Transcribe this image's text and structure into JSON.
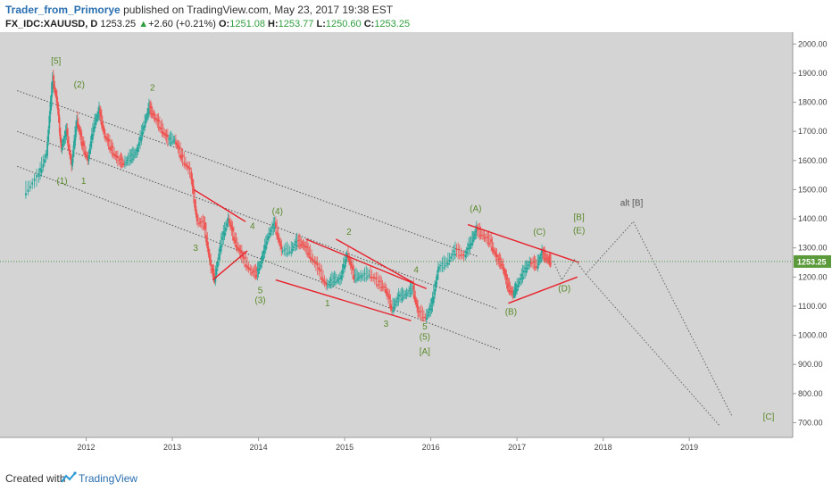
{
  "header": {
    "author": "Trader_from_Primorye",
    "published_text": "published on TradingView.com, May 23, 2017 19:38 EST",
    "symbol": "FX_IDC:XAUUSD, D",
    "last": "1253.25",
    "change": "+2.60 (+0.21%)",
    "o_label": "O:",
    "o_value": "1251.08",
    "h_label": "H:",
    "h_value": "1253.77",
    "l_label": "L:",
    "l_value": "1250.60",
    "c_label": "C:",
    "c_value": "1253.25"
  },
  "footer": {
    "created_with": "Created with",
    "brand": "TradingView"
  },
  "chart_data": {
    "type": "line",
    "title": "",
    "xlabel": "",
    "ylabel": "",
    "x_ticks": [
      "2012",
      "2013",
      "2014",
      "2015",
      "2016",
      "2017",
      "2018",
      "2019"
    ],
    "y_ticks": [
      "2000.00",
      "1900.00",
      "1800.00",
      "1700.00",
      "1600.00",
      "1500.00",
      "1400.00",
      "1300.00",
      "1200.00",
      "1100.00",
      "1000.00",
      "900.00",
      "800.00",
      "700.00"
    ],
    "ylim": [
      680,
      2010
    ],
    "last_price_label": "1253.25",
    "last_price": 1253.25,
    "colors": {
      "up": "#26a69a",
      "down": "#ef5350",
      "trend": "#e8202a",
      "wave": "#5a8a2a",
      "channel": "#555555"
    },
    "series": [
      {
        "values": [
          [
            2011.3,
            1490
          ],
          [
            2011.45,
            1540
          ],
          [
            2011.55,
            1620
          ],
          [
            2011.62,
            1880
          ],
          [
            2011.67,
            1800
          ],
          [
            2011.72,
            1640
          ],
          [
            2011.78,
            1700
          ],
          [
            2011.84,
            1580
          ],
          [
            2011.9,
            1740
          ],
          [
            2011.96,
            1660
          ],
          [
            2012.03,
            1600
          ],
          [
            2012.1,
            1720
          ],
          [
            2012.16,
            1770
          ],
          [
            2012.22,
            1690
          ],
          [
            2012.3,
            1640
          ],
          [
            2012.38,
            1600
          ],
          [
            2012.45,
            1590
          ],
          [
            2012.53,
            1610
          ],
          [
            2012.6,
            1630
          ],
          [
            2012.68,
            1720
          ],
          [
            2012.74,
            1780
          ],
          [
            2012.8,
            1750
          ],
          [
            2012.88,
            1710
          ],
          [
            2012.96,
            1670
          ],
          [
            2013.04,
            1670
          ],
          [
            2013.12,
            1610
          ],
          [
            2013.22,
            1560
          ],
          [
            2013.3,
            1390
          ],
          [
            2013.38,
            1380
          ],
          [
            2013.46,
            1230
          ],
          [
            2013.5,
            1190
          ],
          [
            2013.58,
            1320
          ],
          [
            2013.66,
            1400
          ],
          [
            2013.74,
            1320
          ],
          [
            2013.82,
            1270
          ],
          [
            2013.92,
            1220
          ],
          [
            2013.99,
            1210
          ],
          [
            2014.05,
            1260
          ],
          [
            2014.12,
            1340
          ],
          [
            2014.2,
            1380
          ],
          [
            2014.28,
            1290
          ],
          [
            2014.38,
            1290
          ],
          [
            2014.46,
            1320
          ],
          [
            2014.53,
            1310
          ],
          [
            2014.6,
            1280
          ],
          [
            2014.7,
            1230
          ],
          [
            2014.8,
            1170
          ],
          [
            2014.88,
            1190
          ],
          [
            2014.96,
            1190
          ],
          [
            2015.04,
            1280
          ],
          [
            2015.12,
            1200
          ],
          [
            2015.2,
            1200
          ],
          [
            2015.3,
            1210
          ],
          [
            2015.4,
            1180
          ],
          [
            2015.48,
            1160
          ],
          [
            2015.56,
            1090
          ],
          [
            2015.64,
            1130
          ],
          [
            2015.72,
            1140
          ],
          [
            2015.8,
            1160
          ],
          [
            2015.86,
            1080
          ],
          [
            2015.95,
            1060
          ],
          [
            2016.02,
            1100
          ],
          [
            2016.1,
            1230
          ],
          [
            2016.2,
            1250
          ],
          [
            2016.3,
            1290
          ],
          [
            2016.4,
            1270
          ],
          [
            2016.48,
            1320
          ],
          [
            2016.54,
            1360
          ],
          [
            2016.62,
            1340
          ],
          [
            2016.7,
            1320
          ],
          [
            2016.78,
            1260
          ],
          [
            2016.84,
            1240
          ],
          [
            2016.9,
            1170
          ],
          [
            2016.96,
            1140
          ],
          [
            2017.0,
            1160
          ],
          [
            2017.08,
            1210
          ],
          [
            2017.16,
            1250
          ],
          [
            2017.24,
            1240
          ],
          [
            2017.3,
            1280
          ],
          [
            2017.36,
            1260
          ],
          [
            2017.4,
            1253
          ]
        ]
      }
    ],
    "channel_lines": [
      [
        [
          2011.2,
          1840
        ],
        [
          2016.55,
          1270
        ]
      ],
      [
        [
          2011.2,
          1700
        ],
        [
          2016.78,
          1090
        ]
      ],
      [
        [
          2011.2,
          1580
        ],
        [
          2016.8,
          950
        ]
      ]
    ],
    "trend_lines": [
      [
        [
          2013.25,
          1500
        ],
        [
          2013.85,
          1390
        ]
      ],
      [
        [
          2013.47,
          1190
        ],
        [
          2013.87,
          1290
        ]
      ],
      [
        [
          2014.2,
          1190
        ],
        [
          2015.77,
          1050
        ]
      ],
      [
        [
          2014.55,
          1330
        ],
        [
          2015.95,
          1160
        ]
      ],
      [
        [
          2014.9,
          1330
        ],
        [
          2015.8,
          1180
        ]
      ],
      [
        [
          2016.43,
          1380
        ],
        [
          2017.72,
          1250
        ]
      ],
      [
        [
          2016.9,
          1110
        ],
        [
          2017.7,
          1200
        ]
      ]
    ],
    "projection_lines": [
      [
        [
          2017.42,
          1255
        ],
        [
          2017.52,
          1190
        ],
        [
          2017.67,
          1260
        ],
        [
          2017.8,
          1210
        ],
        [
          2018.35,
          1390
        ],
        [
          2019.5,
          720
        ]
      ],
      [
        [
          2017.8,
          1210
        ],
        [
          2019.35,
          690
        ]
      ]
    ],
    "annotations": [
      {
        "text": "[5]",
        "x": 2011.65,
        "y": 1932
      },
      {
        "text": "(2)",
        "x": 2011.92,
        "y": 1850
      },
      {
        "text": "2",
        "x": 2012.77,
        "y": 1840
      },
      {
        "text": "(1)",
        "x": 2011.72,
        "y": 1520
      },
      {
        "text": "1",
        "x": 2011.97,
        "y": 1520
      },
      {
        "text": "3",
        "x": 2013.27,
        "y": 1290
      },
      {
        "text": "4",
        "x": 2013.93,
        "y": 1365
      },
      {
        "text": "(4)",
        "x": 2014.22,
        "y": 1415
      },
      {
        "text": "5",
        "x": 2014.02,
        "y": 1145
      },
      {
        "text": "(3)",
        "x": 2014.02,
        "y": 1110
      },
      {
        "text": "2",
        "x": 2015.05,
        "y": 1345
      },
      {
        "text": "4",
        "x": 2015.83,
        "y": 1215
      },
      {
        "text": "1",
        "x": 2014.8,
        "y": 1100
      },
      {
        "text": "3",
        "x": 2015.48,
        "y": 1030
      },
      {
        "text": "5",
        "x": 2015.93,
        "y": 1020
      },
      {
        "text": "(5)",
        "x": 2015.93,
        "y": 985
      },
      {
        "text": "[A]",
        "x": 2015.93,
        "y": 935
      },
      {
        "text": "(A)",
        "x": 2016.52,
        "y": 1425
      },
      {
        "text": "(C)",
        "x": 2017.26,
        "y": 1345
      },
      {
        "text": "(B)",
        "x": 2016.93,
        "y": 1070
      },
      {
        "text": "(D)",
        "x": 2017.55,
        "y": 1150
      },
      {
        "text": "[B]",
        "x": 2017.72,
        "y": 1395
      },
      {
        "text": "(E)",
        "x": 2017.72,
        "y": 1350
      },
      {
        "text": "alt [B]",
        "x": 2018.33,
        "y": 1445
      },
      {
        "text": "[C]",
        "x": 2019.92,
        "y": 710
      }
    ]
  }
}
